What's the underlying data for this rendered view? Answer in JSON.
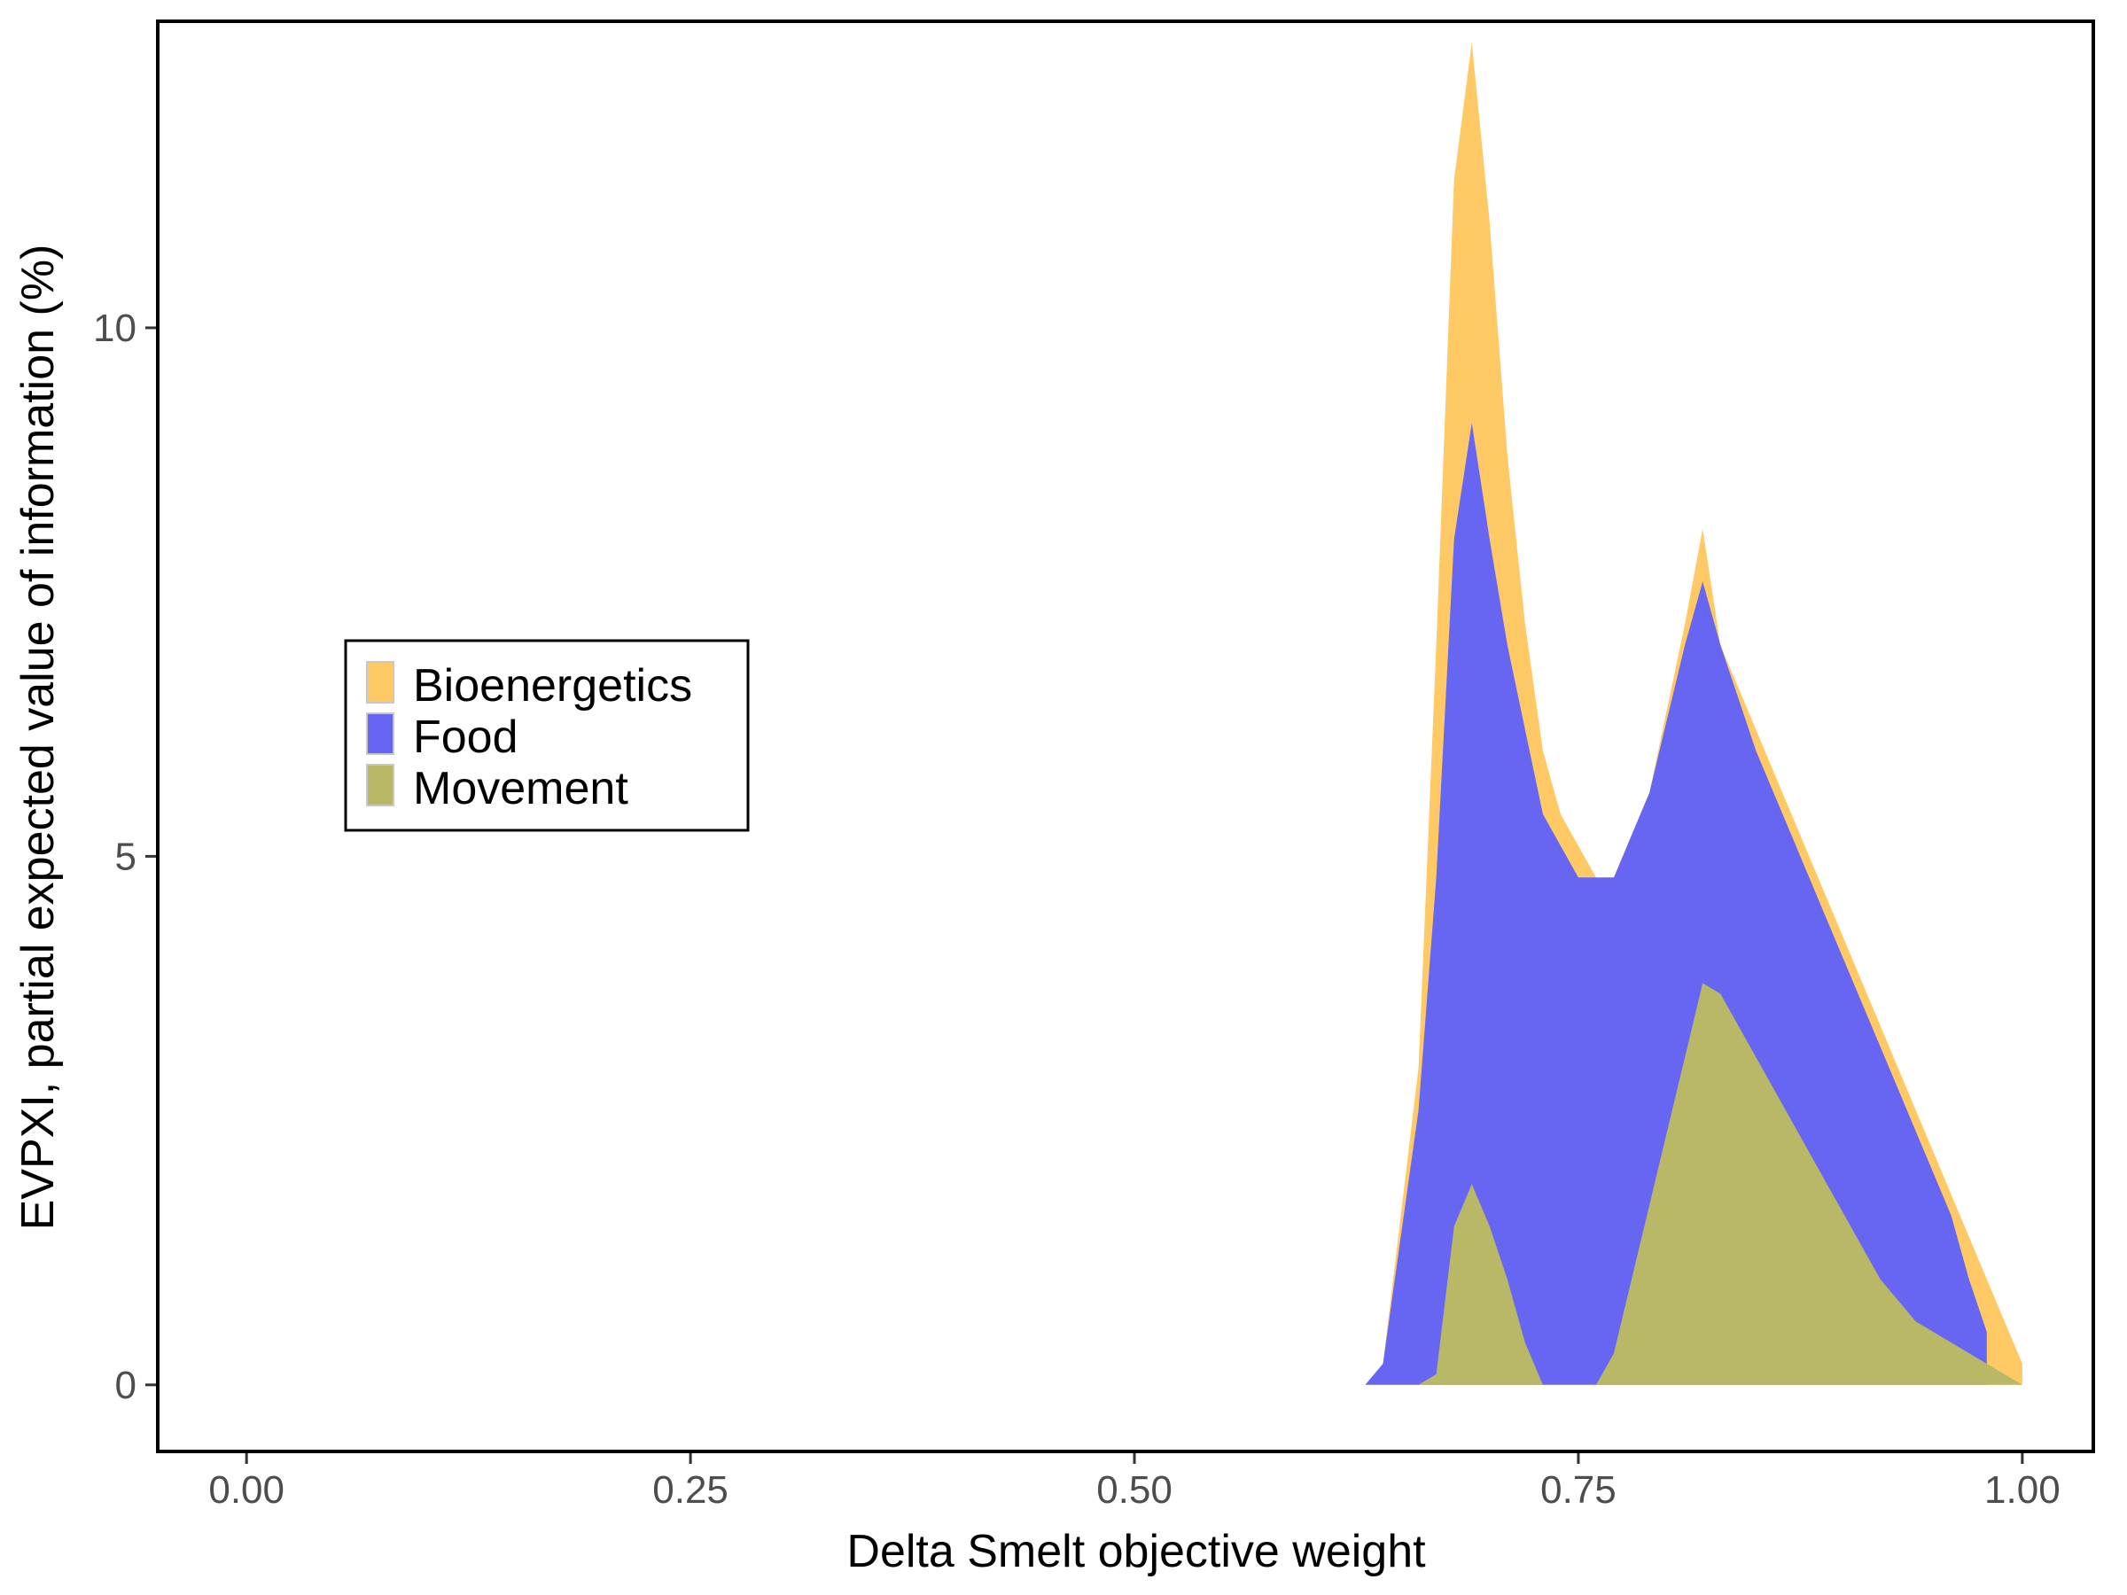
{
  "chart_data": {
    "type": "area",
    "title": "",
    "xlabel": "Delta Smelt objective weight",
    "ylabel": "EVPXI, partial expected value of information (%)",
    "xlim": [
      -0.05,
      1.04
    ],
    "ylim": [
      -0.63,
      12.9
    ],
    "x_ticks": [
      0.0,
      0.25,
      0.5,
      0.75,
      1.0
    ],
    "x_tick_labels": [
      "0.00",
      "0.25",
      "0.50",
      "0.75",
      "1.00"
    ],
    "y_ticks": [
      0,
      5,
      10
    ],
    "y_tick_labels": [
      "0",
      "5",
      "10"
    ],
    "grid": false,
    "legend": {
      "position": "left-middle",
      "entries": [
        "Bioenergetics",
        "Food",
        "Movement"
      ]
    },
    "colors": {
      "Bioenergetics": "#FFC966",
      "Food": "#6666F2",
      "Movement": "#B8B866"
    },
    "series": [
      {
        "name": "Bioenergetics",
        "x": [
          0.63,
          0.64,
          0.66,
          0.67,
          0.68,
          0.69,
          0.7,
          0.71,
          0.72,
          0.73,
          0.74,
          0.75,
          0.76,
          0.77,
          0.78,
          0.79,
          0.8,
          0.81,
          0.82,
          0.83,
          0.84,
          0.85,
          0.86,
          0.87,
          0.88,
          0.89,
          0.9,
          0.91,
          0.92,
          0.93,
          0.94,
          0.95,
          0.96,
          0.97,
          0.98,
          0.99,
          1.0
        ],
        "y": [
          0.0,
          0.2,
          3.0,
          7.0,
          11.4,
          12.7,
          11.0,
          8.8,
          7.2,
          6.0,
          5.4,
          5.1,
          4.8,
          4.8,
          5.2,
          5.6,
          6.4,
          7.2,
          8.1,
          7.0,
          6.6,
          6.2,
          5.8,
          5.4,
          5.0,
          4.6,
          4.2,
          3.8,
          3.4,
          3.0,
          2.6,
          2.2,
          1.8,
          1.4,
          1.0,
          0.6,
          0.2
        ]
      },
      {
        "name": "Food",
        "x": [
          0.63,
          0.64,
          0.66,
          0.67,
          0.68,
          0.69,
          0.7,
          0.71,
          0.72,
          0.73,
          0.74,
          0.75,
          0.76,
          0.77,
          0.78,
          0.79,
          0.8,
          0.81,
          0.82,
          0.83,
          0.84,
          0.85,
          0.86,
          0.87,
          0.88,
          0.89,
          0.9,
          0.91,
          0.92,
          0.93,
          0.94,
          0.95,
          0.96,
          0.97,
          0.98
        ],
        "y": [
          0.0,
          0.2,
          2.6,
          4.8,
          8.0,
          9.1,
          8.0,
          7.0,
          6.2,
          5.4,
          5.1,
          4.8,
          4.8,
          4.8,
          5.2,
          5.6,
          6.3,
          7.0,
          7.6,
          7.0,
          6.5,
          6.0,
          5.6,
          5.2,
          4.8,
          4.4,
          4.0,
          3.6,
          3.2,
          2.8,
          2.4,
          2.0,
          1.6,
          1.0,
          0.5
        ]
      },
      {
        "name": "Movement",
        "x": [
          0.66,
          0.67,
          0.68,
          0.69,
          0.7,
          0.71,
          0.72,
          0.73,
          0.76,
          0.77,
          0.78,
          0.79,
          0.8,
          0.81,
          0.82,
          0.83,
          0.84,
          0.85,
          0.86,
          0.87,
          0.88,
          0.89,
          0.9,
          0.91,
          0.92,
          0.93,
          0.94,
          0.95,
          0.96,
          0.97,
          0.98,
          0.99,
          1.0
        ],
        "y": [
          0.0,
          0.1,
          1.5,
          1.9,
          1.5,
          1.0,
          0.4,
          0.0,
          0.0,
          0.3,
          1.0,
          1.7,
          2.4,
          3.1,
          3.8,
          3.7,
          3.4,
          3.1,
          2.8,
          2.5,
          2.2,
          1.9,
          1.6,
          1.3,
          1.0,
          0.8,
          0.6,
          0.5,
          0.4,
          0.3,
          0.2,
          0.1,
          0.0
        ]
      }
    ]
  }
}
